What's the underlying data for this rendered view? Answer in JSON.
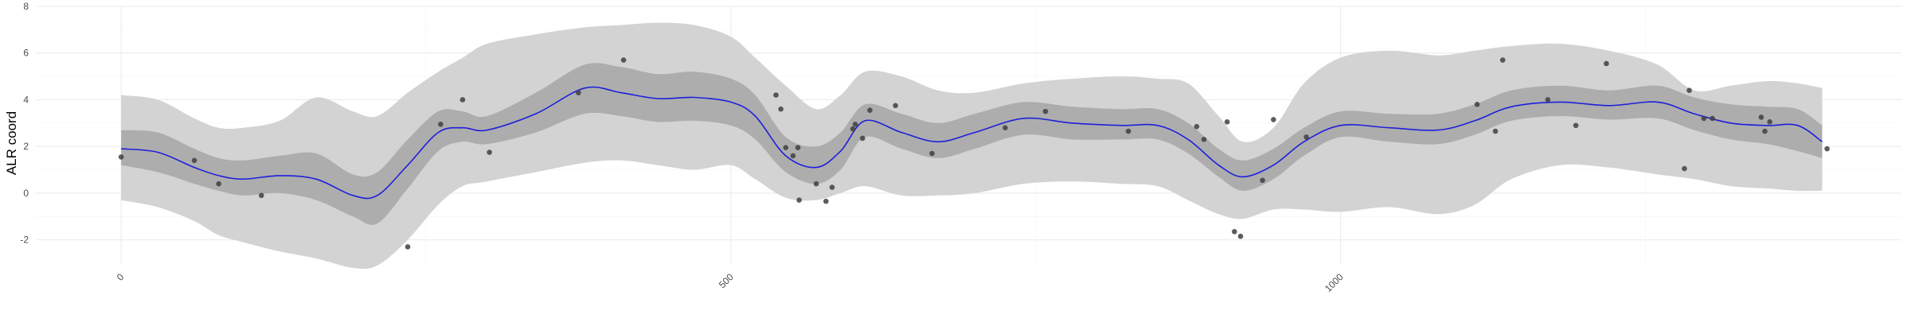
{
  "chart_data": {
    "type": "line",
    "title": "",
    "xlabel": "",
    "ylabel": "ALR coord",
    "xlim": [
      -70,
      1460
    ],
    "ylim": [
      -3.0,
      8.0
    ],
    "x_ticks": [
      0,
      500,
      1000
    ],
    "x_tick_labels": [
      "0",
      "500",
      "1000"
    ],
    "y_ticks": [
      -2,
      0,
      2,
      4,
      6,
      8
    ],
    "y_tick_labels": [
      "-2",
      "0",
      "2",
      "4",
      "6",
      "8"
    ],
    "grid": true,
    "legend": "none",
    "colors": {
      "mean_line": "#1f1fdb",
      "inner_band": "#adadad",
      "outer_band": "#d3d3d3",
      "points": "#404040",
      "grid_major": "#ebebeb",
      "grid_minor": "#f5f5f5"
    },
    "series": [
      {
        "type": "line",
        "x": [
          0,
          30,
          60,
          80,
          100,
          130,
          160,
          190,
          210,
          235,
          260,
          280,
          300,
          340,
          380,
          410,
          440,
          470,
          500,
          520,
          545,
          570,
          590,
          610,
          640,
          670,
          700,
          740,
          780,
          820,
          850,
          875,
          900,
          920,
          945,
          970,
          1000,
          1040,
          1080,
          1110,
          1140,
          1180,
          1220,
          1260,
          1290,
          1320,
          1350,
          1375,
          1395
        ],
        "y": [
          1.9,
          1.75,
          1.1,
          0.75,
          0.6,
          0.75,
          0.6,
          -0.1,
          -0.1,
          1.2,
          2.6,
          2.8,
          2.7,
          3.4,
          4.5,
          4.3,
          4.05,
          4.1,
          3.9,
          3.3,
          1.6,
          1.1,
          1.8,
          3.1,
          2.6,
          2.2,
          2.6,
          3.2,
          3.0,
          2.9,
          2.9,
          2.3,
          1.2,
          0.7,
          1.2,
          2.2,
          2.9,
          2.8,
          2.7,
          3.1,
          3.7,
          3.9,
          3.75,
          3.9,
          3.4,
          3.0,
          2.9,
          2.9,
          2.2
        ]
      },
      {
        "type": "ribbon",
        "name_role": "inner_interval",
        "x": [
          0,
          30,
          60,
          80,
          100,
          130,
          160,
          190,
          210,
          235,
          260,
          280,
          300,
          340,
          380,
          410,
          440,
          470,
          500,
          520,
          545,
          570,
          590,
          610,
          640,
          670,
          700,
          740,
          780,
          820,
          850,
          875,
          900,
          920,
          945,
          970,
          1000,
          1040,
          1080,
          1110,
          1140,
          1180,
          1220,
          1260,
          1290,
          1320,
          1350,
          1375,
          1395
        ],
        "lower": [
          1.2,
          0.9,
          0.4,
          0.1,
          -0.1,
          0.0,
          -0.3,
          -1.0,
          -1.3,
          0.2,
          1.8,
          2.2,
          2.1,
          2.6,
          3.4,
          3.3,
          3.05,
          3.1,
          2.9,
          2.3,
          0.9,
          0.4,
          1.0,
          2.4,
          1.9,
          1.5,
          1.9,
          2.5,
          2.3,
          2.3,
          2.3,
          1.7,
          0.7,
          0.1,
          0.6,
          1.6,
          2.4,
          2.2,
          2.1,
          2.5,
          3.1,
          3.3,
          3.15,
          3.2,
          2.7,
          2.3,
          2.1,
          1.8,
          1.5
        ],
        "upper": [
          2.7,
          2.6,
          1.9,
          1.5,
          1.4,
          1.6,
          1.7,
          0.8,
          0.9,
          2.3,
          3.5,
          3.5,
          3.3,
          4.3,
          5.5,
          5.4,
          5.1,
          5.2,
          4.9,
          4.2,
          2.4,
          2.0,
          2.6,
          3.8,
          3.4,
          3.0,
          3.4,
          3.9,
          3.7,
          3.6,
          3.6,
          3.0,
          1.9,
          1.4,
          1.9,
          2.8,
          3.5,
          3.4,
          3.4,
          3.8,
          4.4,
          4.6,
          4.4,
          4.6,
          4.1,
          3.8,
          3.7,
          3.6,
          2.9
        ]
      },
      {
        "type": "ribbon",
        "name_role": "outer_interval",
        "x": [
          0,
          30,
          60,
          80,
          100,
          130,
          160,
          190,
          210,
          235,
          260,
          280,
          300,
          340,
          380,
          410,
          440,
          470,
          500,
          520,
          545,
          570,
          590,
          610,
          640,
          670,
          700,
          740,
          780,
          820,
          850,
          875,
          900,
          920,
          945,
          970,
          1000,
          1040,
          1080,
          1110,
          1140,
          1180,
          1220,
          1260,
          1290,
          1320,
          1350,
          1375,
          1395
        ],
        "lower": [
          -0.3,
          -0.6,
          -1.2,
          -1.8,
          -2.1,
          -2.5,
          -2.8,
          -3.2,
          -3.1,
          -2.0,
          -0.5,
          0.3,
          0.5,
          0.9,
          1.3,
          1.4,
          1.2,
          1.0,
          1.2,
          0.6,
          -0.2,
          -0.3,
          0.0,
          0.3,
          -0.1,
          -0.1,
          0.0,
          0.4,
          0.5,
          0.4,
          0.3,
          -0.3,
          -0.9,
          -1.1,
          -0.7,
          -0.7,
          -0.8,
          -0.6,
          -0.9,
          -0.5,
          0.6,
          1.2,
          1.1,
          0.8,
          0.6,
          0.3,
          0.2,
          0.1,
          0.1
        ],
        "upper": [
          4.2,
          4.0,
          3.2,
          2.8,
          2.8,
          3.1,
          4.1,
          3.5,
          3.3,
          4.3,
          5.2,
          5.8,
          6.4,
          6.8,
          7.1,
          7.2,
          7.3,
          7.2,
          6.7,
          5.8,
          4.6,
          3.6,
          4.2,
          5.2,
          5.0,
          4.4,
          4.3,
          4.7,
          4.9,
          5.0,
          4.9,
          4.7,
          3.3,
          2.2,
          2.8,
          4.7,
          5.8,
          6.1,
          5.9,
          6.1,
          6.3,
          6.4,
          6.1,
          5.5,
          4.4,
          4.6,
          4.8,
          4.7,
          4.5
        ]
      },
      {
        "type": "scatter",
        "points": [
          [
            0,
            1.55
          ],
          [
            60,
            1.4
          ],
          [
            80,
            0.4
          ],
          [
            115,
            -0.1
          ],
          [
            235,
            -2.3
          ],
          [
            262,
            2.95
          ],
          [
            280,
            4.0
          ],
          [
            302,
            1.75
          ],
          [
            375,
            4.3
          ],
          [
            412,
            5.7
          ],
          [
            537,
            4.2
          ],
          [
            541,
            3.6
          ],
          [
            545,
            1.95
          ],
          [
            551,
            1.6
          ],
          [
            555,
            1.95
          ],
          [
            556,
            -0.3
          ],
          [
            570,
            0.4
          ],
          [
            578,
            -0.35
          ],
          [
            583,
            0.25
          ],
          [
            600,
            2.75
          ],
          [
            602,
            2.95
          ],
          [
            608,
            2.35
          ],
          [
            614,
            3.55
          ],
          [
            635,
            3.75
          ],
          [
            665,
            1.7
          ],
          [
            725,
            2.8
          ],
          [
            758,
            3.5
          ],
          [
            826,
            2.65
          ],
          [
            882,
            2.85
          ],
          [
            888,
            2.3
          ],
          [
            907,
            3.05
          ],
          [
            913,
            -1.65
          ],
          [
            918,
            -1.85
          ],
          [
            936,
            0.55
          ],
          [
            945,
            3.15
          ],
          [
            972,
            2.4
          ],
          [
            1112,
            3.8
          ],
          [
            1127,
            2.65
          ],
          [
            1133,
            5.7
          ],
          [
            1170,
            4.0
          ],
          [
            1193,
            2.9
          ],
          [
            1218,
            5.55
          ],
          [
            1282,
            1.05
          ],
          [
            1286,
            4.4
          ],
          [
            1298,
            3.2
          ],
          [
            1305,
            3.2
          ],
          [
            1345,
            3.25
          ],
          [
            1348,
            2.65
          ],
          [
            1352,
            3.05
          ],
          [
            1399,
            1.9
          ]
        ]
      }
    ]
  }
}
